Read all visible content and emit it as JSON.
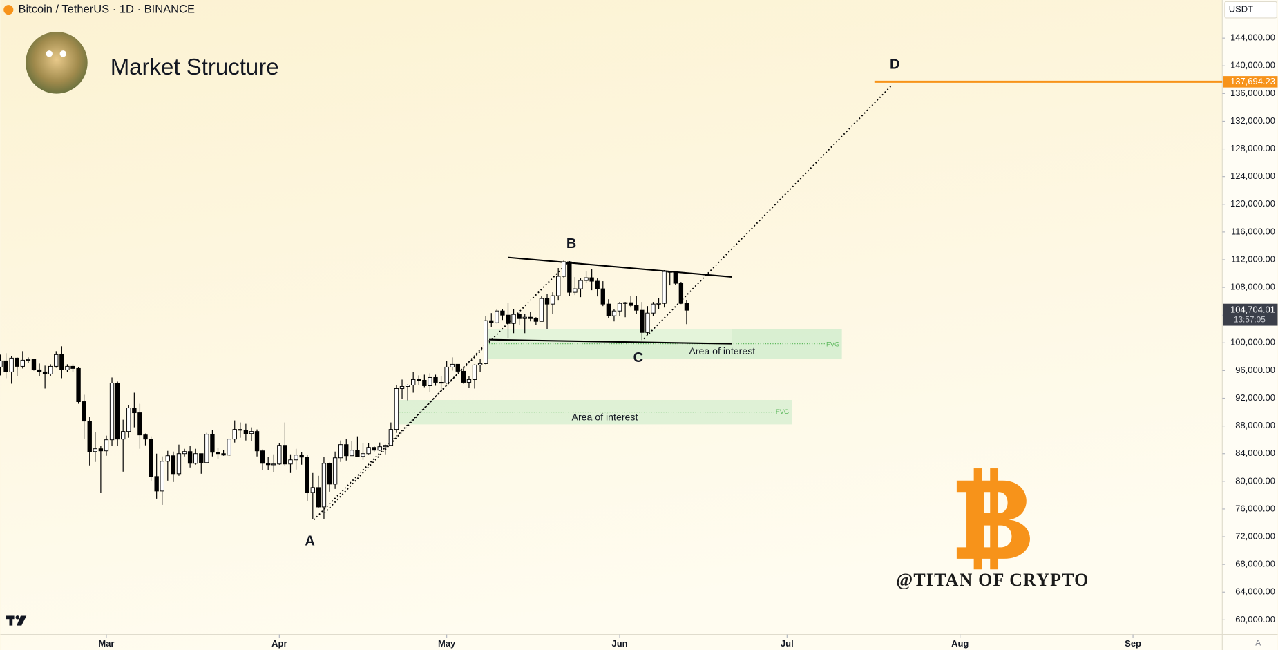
{
  "symbol_line": "Bitcoin / TetherUS · 1D · BINANCE",
  "currency": "USDT",
  "auto_button": "A",
  "watermark": "@TITAN OF CRYPTO",
  "chart_data": {
    "type": "candlestick",
    "title": "Market Structure",
    "up_color": "#ffffff",
    "down_color": "#000000",
    "open": [
      96500,
      97400,
      95800,
      97800,
      96600,
      97500,
      97600,
      96100,
      95800,
      95500,
      96600,
      98300,
      96100,
      96600,
      96300,
      91500,
      88700,
      84300,
      84700,
      84400,
      86000,
      94200,
      86100,
      87200,
      90600,
      89900,
      86700,
      86100,
      80700,
      78600,
      82900,
      83700,
      81100,
      84000,
      84300,
      82600,
      84000,
      82700,
      86800,
      84200,
      84000,
      83800,
      86100,
      87500,
      87400,
      86900,
      87200,
      84400,
      82600,
      82400,
      82500,
      85200,
      82500,
      83100,
      83800,
      83500,
      78400,
      79100,
      76300,
      82600,
      79600,
      83400,
      85300,
      83700,
      84500,
      83600,
      84000,
      84900,
      84500,
      85000,
      85200,
      87500,
      93400,
      93700,
      93900,
      94700,
      94600,
      93800,
      95000,
      94300,
      94200,
      96500,
      96900,
      95900,
      94300,
      94700,
      96800,
      97000,
      103200,
      102900,
      104600,
      104000,
      102800,
      104100,
      103500,
      103700,
      103500,
      103100,
      106400,
      105600,
      106800,
      109600,
      111700,
      107300,
      107800,
      109000,
      109400,
      108900,
      107800,
      105600,
      103900,
      104600,
      105700,
      105800,
      105400,
      104700,
      101500,
      104300,
      105600,
      105700,
      110300,
      110200,
      108600,
      105700
    ],
    "high": [
      98300,
      98500,
      98100,
      97900,
      98800,
      97900,
      97700,
      97000,
      96700,
      96900,
      98800,
      99500,
      96900,
      96900,
      96500,
      92500,
      89300,
      87100,
      85100,
      86600,
      95000,
      94400,
      88900,
      91000,
      92800,
      91200,
      86900,
      86500,
      84000,
      83600,
      84400,
      84300,
      85300,
      84700,
      85100,
      84700,
      84000,
      87000,
      87400,
      84800,
      84500,
      86100,
      88800,
      88500,
      88300,
      87800,
      87500,
      84600,
      83500,
      83900,
      85500,
      88500,
      83900,
      84700,
      84200,
      83800,
      81200,
      80800,
      83500,
      82700,
      84300,
      85900,
      86100,
      85800,
      86500,
      85500,
      85500,
      85100,
      85600,
      85300,
      88500,
      93900,
      94700,
      94000,
      95800,
      95300,
      95400,
      95600,
      95400,
      95200,
      97400,
      97900,
      96900,
      96300,
      95200,
      96900,
      97700,
      103900,
      104300,
      104900,
      104900,
      105800,
      104900,
      104400,
      104200,
      104500,
      103700,
      106700,
      107100,
      107300,
      110800,
      111900,
      111800,
      109500,
      109300,
      110400,
      110700,
      109300,
      108900,
      106300,
      104900,
      105900,
      105900,
      106800,
      106800,
      105900,
      105300,
      105900,
      106500,
      110500,
      110400,
      110300,
      108800,
      106200
    ],
    "low": [
      95300,
      94900,
      94100,
      95200,
      96300,
      97100,
      96000,
      95200,
      93400,
      95200,
      96400,
      94900,
      95800,
      95800,
      91200,
      86100,
      82300,
      82800,
      78300,
      83700,
      85100,
      85100,
      81400,
      86300,
      87800,
      84700,
      85200,
      80000,
      77500,
      76600,
      80100,
      79900,
      80800,
      83600,
      82000,
      82400,
      81100,
      82600,
      83600,
      83200,
      83700,
      83700,
      85600,
      86300,
      85900,
      85800,
      83600,
      81600,
      81600,
      81300,
      82400,
      82300,
      81200,
      81700,
      82400,
      77200,
      74500,
      76200,
      74600,
      78500,
      78900,
      82800,
      83000,
      83700,
      83600,
      83100,
      83900,
      84300,
      84400,
      83900,
      85100,
      87000,
      91900,
      91700,
      92800,
      93900,
      93600,
      92900,
      93800,
      92900,
      94100,
      96000,
      95700,
      94100,
      93500,
      93400,
      95800,
      96900,
      102300,
      102800,
      103300,
      100700,
      101400,
      102600,
      101400,
      103100,
      102600,
      103100,
      102000,
      104200,
      106100,
      109300,
      106800,
      106900,
      106600,
      108700,
      107600,
      106700,
      105300,
      103600,
      103100,
      103900,
      103700,
      105100,
      104200,
      100400,
      101100,
      103900,
      104900,
      105100,
      108300,
      108400,
      105600,
      102700
    ],
    "close": [
      97400,
      95800,
      97800,
      96600,
      97500,
      97600,
      96100,
      95800,
      95500,
      96600,
      98300,
      96100,
      96600,
      96300,
      91500,
      88700,
      84300,
      84700,
      84400,
      86000,
      94200,
      86100,
      87200,
      90600,
      89900,
      86700,
      86100,
      80700,
      78600,
      82900,
      83700,
      81100,
      84000,
      84300,
      82600,
      84000,
      82700,
      86800,
      84200,
      84000,
      83800,
      86100,
      87500,
      87400,
      86900,
      87200,
      84400,
      82600,
      82400,
      82500,
      85200,
      82500,
      83100,
      83800,
      83500,
      78400,
      79100,
      76300,
      82600,
      79600,
      83400,
      85300,
      83700,
      84500,
      83600,
      84000,
      84900,
      84500,
      85000,
      85200,
      87500,
      93400,
      93700,
      93900,
      94700,
      94600,
      93800,
      95000,
      94300,
      94200,
      96500,
      96900,
      95900,
      94300,
      94700,
      96800,
      97000,
      103200,
      102900,
      104600,
      104000,
      102800,
      104100,
      103500,
      103700,
      103500,
      103100,
      106400,
      105600,
      106800,
      109600,
      111700,
      107300,
      107800,
      109000,
      109400,
      108900,
      107800,
      105600,
      103900,
      104600,
      105700,
      105800,
      105400,
      104700,
      101500,
      104300,
      105600,
      105700,
      110300,
      110200,
      108600,
      105700,
      104704.01
    ],
    "last_price_label": "104,704.01",
    "countdown": "13:57:05",
    "target_level": 137694.23,
    "target_label": "137,694.23",
    "target_color": "#f7931a",
    "annotations": [
      "A",
      "B",
      "C",
      "D",
      "Area of interest",
      "Area of interest",
      "FVG",
      "FVG"
    ],
    "xlim": [
      0,
      219
    ],
    "xticks": [
      {
        "value": 19,
        "label": "Mar"
      },
      {
        "value": 50,
        "label": "Apr"
      },
      {
        "value": 80,
        "label": "May"
      },
      {
        "value": 111,
        "label": "Jun"
      },
      {
        "value": 141,
        "label": "Jul"
      },
      {
        "value": 172,
        "label": "Aug"
      },
      {
        "value": 203,
        "label": "Sep"
      }
    ],
    "ylim": [
      58000,
      149500
    ],
    "yticks": [
      {
        "value": 60000,
        "label": "60,000.00"
      },
      {
        "value": 64000,
        "label": "64,000.00"
      },
      {
        "value": 68000,
        "label": "68,000.00"
      },
      {
        "value": 72000,
        "label": "72,000.00"
      },
      {
        "value": 76000,
        "label": "76,000.00"
      },
      {
        "value": 80000,
        "label": "80,000.00"
      },
      {
        "value": 84000,
        "label": "84,000.00"
      },
      {
        "value": 88000,
        "label": "88,000.00"
      },
      {
        "value": 92000,
        "label": "92,000.00"
      },
      {
        "value": 96000,
        "label": "96,000.00"
      },
      {
        "value": 100000,
        "label": "100,000.00"
      },
      {
        "value": 104000,
        "label": "104,000.00"
      },
      {
        "value": 108000,
        "label": "108,000.00"
      },
      {
        "value": 112000,
        "label": "112,000.00"
      },
      {
        "value": 116000,
        "label": "116,000.00"
      },
      {
        "value": 120000,
        "label": "120,000.00"
      },
      {
        "value": 124000,
        "label": "124,000.00"
      },
      {
        "value": 128000,
        "label": "128,000.00"
      },
      {
        "value": 132000,
        "label": "132,000.00"
      },
      {
        "value": 136000,
        "label": "136,000.00"
      },
      {
        "value": 140000,
        "label": "140,000.00"
      },
      {
        "value": 144000,
        "label": "144,000.00"
      }
    ],
    "grid": false
  }
}
